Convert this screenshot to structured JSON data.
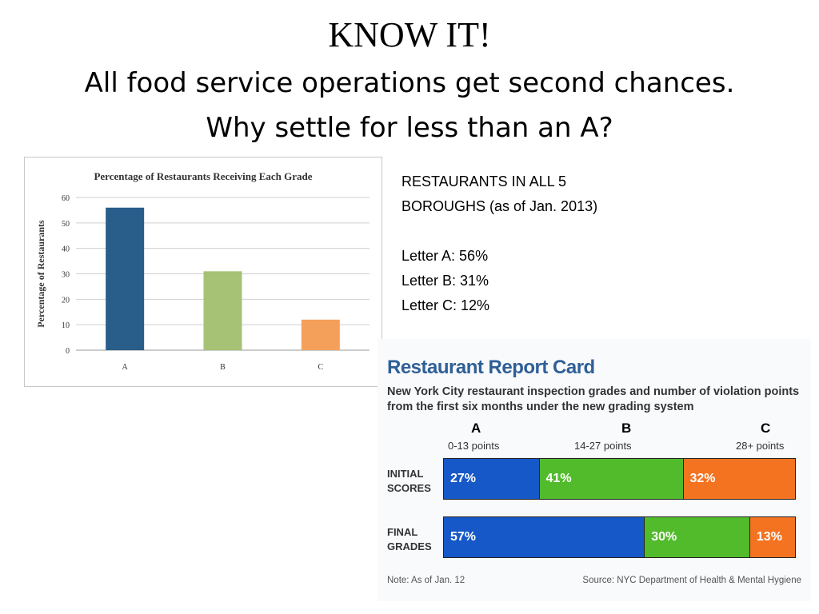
{
  "slide": {
    "title": "KNOW IT!",
    "subtitle_line1": "All food service operations get second chances.",
    "subtitle_line2": "Why settle for less than an A?"
  },
  "stats": {
    "line1": "RESTAURANTS IN ALL 5",
    "line2": "BOROUGHS (as of Jan. 2013)",
    "grades": [
      "Letter A: 56%",
      "Letter B: 31%",
      "Letter C: 12%"
    ]
  },
  "colors": {
    "grade_a": "#295d8a",
    "grade_b": "#a5c275",
    "grade_c": "#f5a05a",
    "report_a": "#1658c8",
    "report_b": "#52bb2c",
    "report_c": "#f47321",
    "grid": "#cfcfcf"
  },
  "chart_data": [
    {
      "type": "bar",
      "title": "Percentage of Restaurants Receiving Each Grade",
      "xlabel": "",
      "ylabel": "Percentage of Restaurants",
      "categories": [
        "A",
        "B",
        "C"
      ],
      "values": [
        56,
        31,
        12
      ],
      "ylim": [
        0,
        60
      ],
      "yticks": [
        0,
        10,
        20,
        30,
        40,
        50,
        60
      ],
      "grid": true,
      "legend": "none"
    },
    {
      "type": "bar",
      "orientation": "horizontal-stacked",
      "title": "Restaurant Report Card",
      "subtitle": "New York City restaurant inspection grades and number of violation points from the first six months under the new grading system",
      "columns": [
        {
          "letter": "A",
          "range": "0-13 points"
        },
        {
          "letter": "B",
          "range": "14-27 points"
        },
        {
          "letter": "C",
          "range": "28+ points"
        }
      ],
      "rows": [
        {
          "label": "INITIAL\nSCORES",
          "values": [
            27,
            41,
            32
          ],
          "labels": [
            "27%",
            "41%",
            "32%"
          ]
        },
        {
          "label": "FINAL\nGRADES",
          "values": [
            57,
            30,
            13
          ],
          "labels": [
            "57%",
            "30%",
            "13%"
          ]
        }
      ],
      "note": "Note: As of Jan. 12",
      "source": "Source: NYC Department of Health & Mental Hygiene"
    }
  ]
}
